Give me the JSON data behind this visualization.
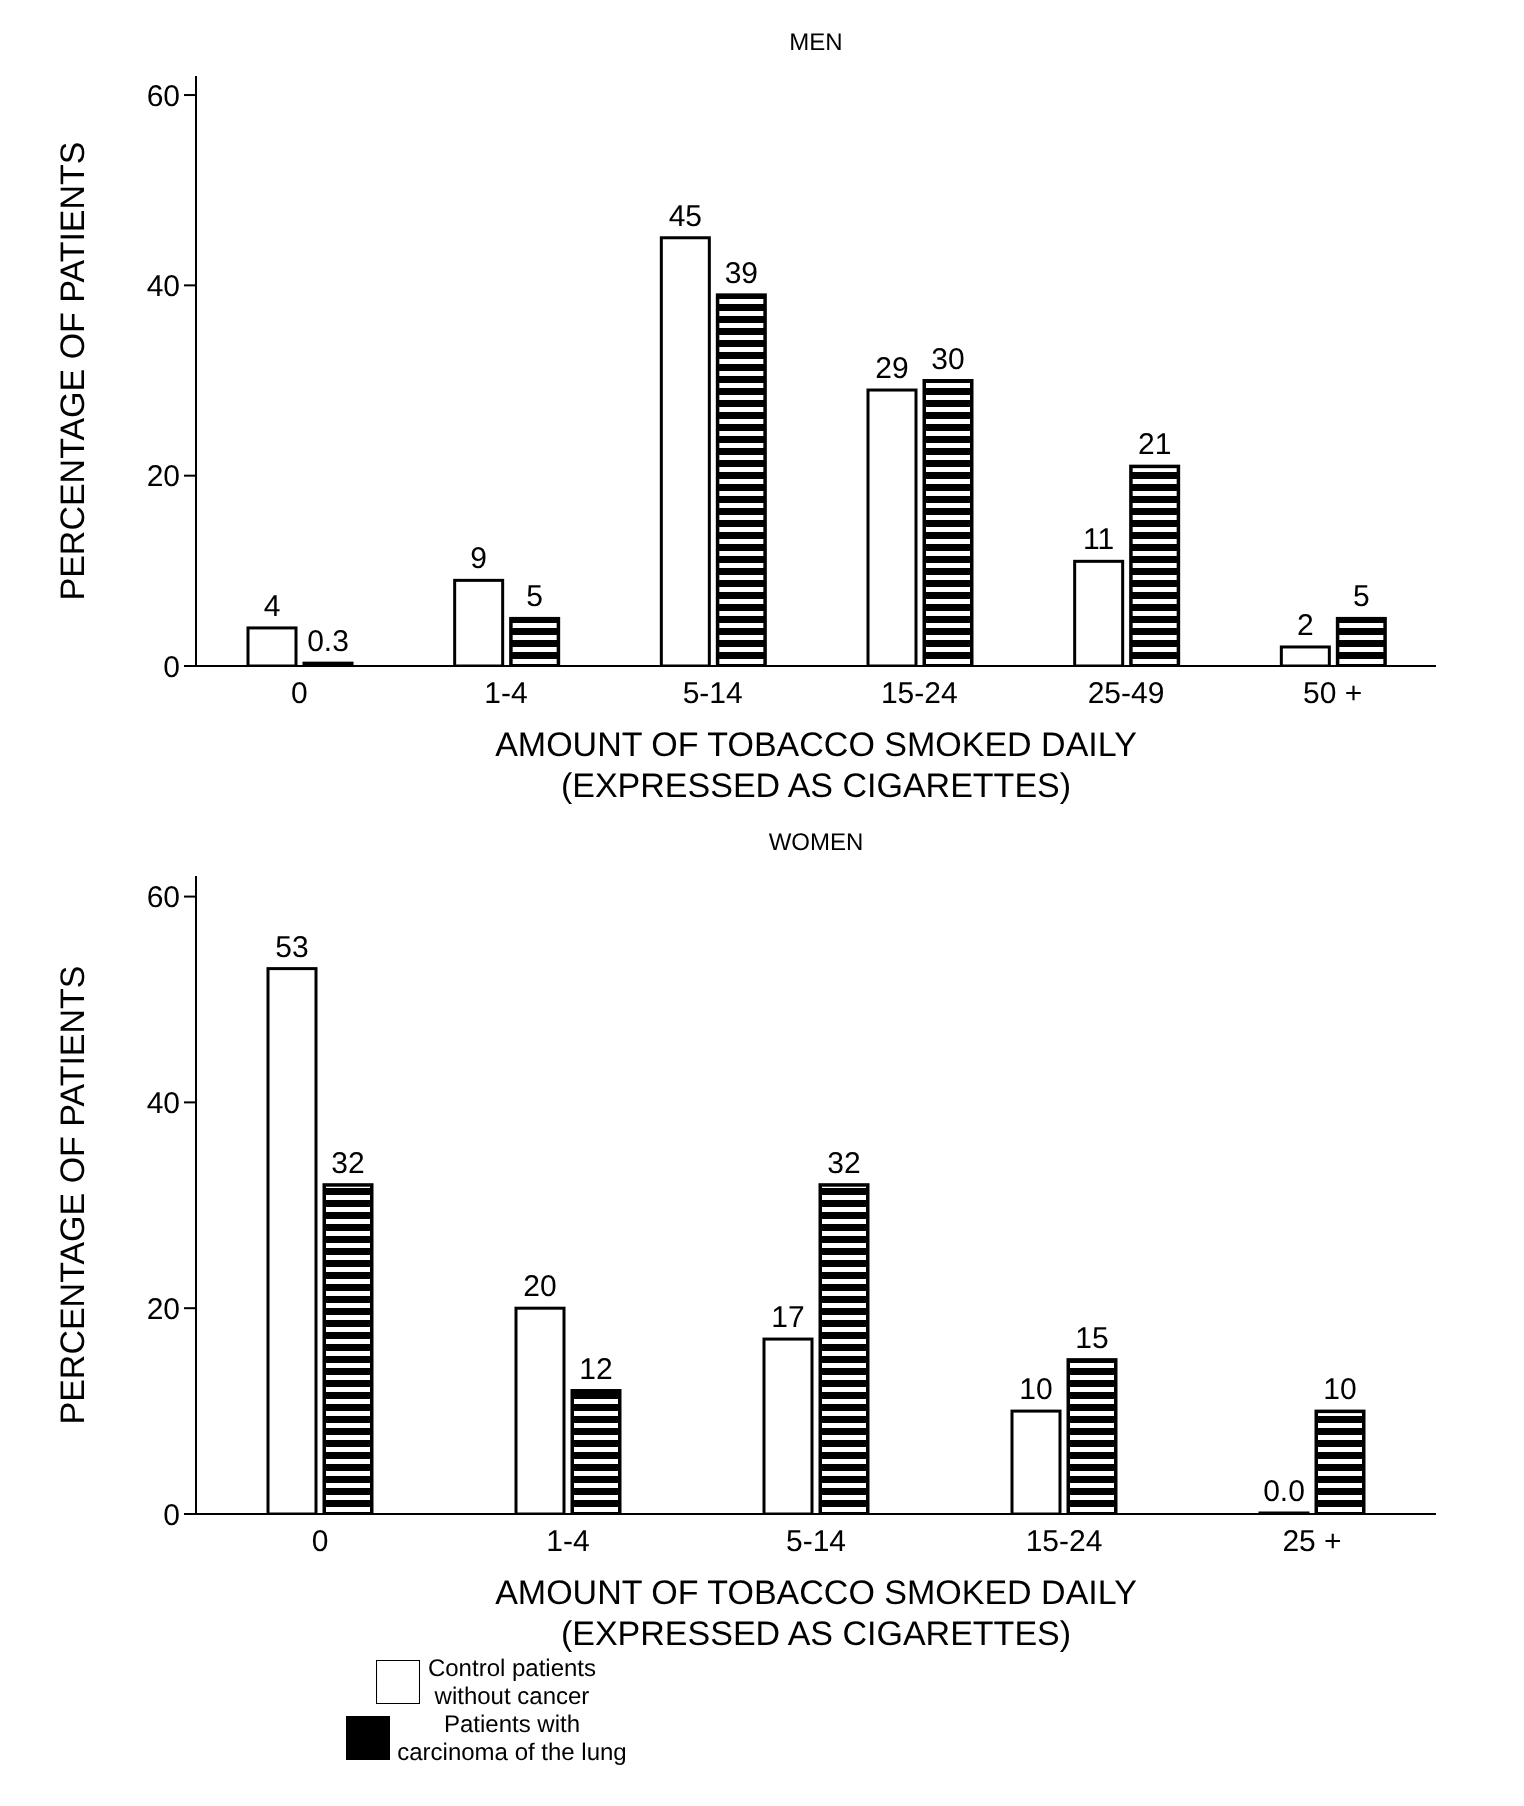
{
  "chart_data": [
    {
      "type": "bar",
      "title": "MEN",
      "xlabel": "AMOUNT OF TOBACCO SMOKED DAILY\n(EXPRESSED AS CIGARETTES)",
      "ylabel": "PERCENTAGE OF PATIENTS",
      "categories": [
        "0",
        "1-4",
        "5-14",
        "15-24",
        "25-49",
        "50 +"
      ],
      "ylim": [
        0,
        62
      ],
      "yticks": [
        0,
        20,
        40,
        60
      ],
      "legend": false,
      "series": [
        {
          "color": "#ffffff",
          "values": [
            4,
            9,
            45,
            29,
            11,
            2
          ],
          "value_labels": [
            "4",
            "9",
            "45",
            "29",
            "11",
            "2"
          ]
        },
        {
          "color": "#000000",
          "values": [
            0.3,
            5,
            39,
            30,
            21,
            5
          ],
          "value_labels": [
            "0.3",
            "5",
            "39",
            "30",
            "21",
            "5"
          ]
        }
      ]
    },
    {
      "type": "bar",
      "title": "WOMEN",
      "xlabel": "AMOUNT OF TOBACCO SMOKED DAILY\n(EXPRESSED AS CIGARETTES)",
      "ylabel": "PERCENTAGE OF PATIENTS",
      "categories": [
        "0",
        "1-4",
        "5-14",
        "15-24",
        "25 +"
      ],
      "ylim": [
        0,
        62
      ],
      "yticks": [
        0,
        20,
        40,
        60
      ],
      "legend": "bottom",
      "series": [
        {
          "name": "Control patients\nwithout cancer",
          "color": "#ffffff",
          "values": [
            53,
            20,
            17,
            10,
            0
          ],
          "value_labels": [
            "53",
            "20",
            "17",
            "10",
            "0.0"
          ]
        },
        {
          "name": "Patients with\ncarcinoma of the lung",
          "color": "#000000",
          "values": [
            32,
            12,
            32,
            15,
            10
          ],
          "value_labels": [
            "32",
            "12",
            "32",
            "15",
            "10"
          ]
        }
      ]
    }
  ]
}
